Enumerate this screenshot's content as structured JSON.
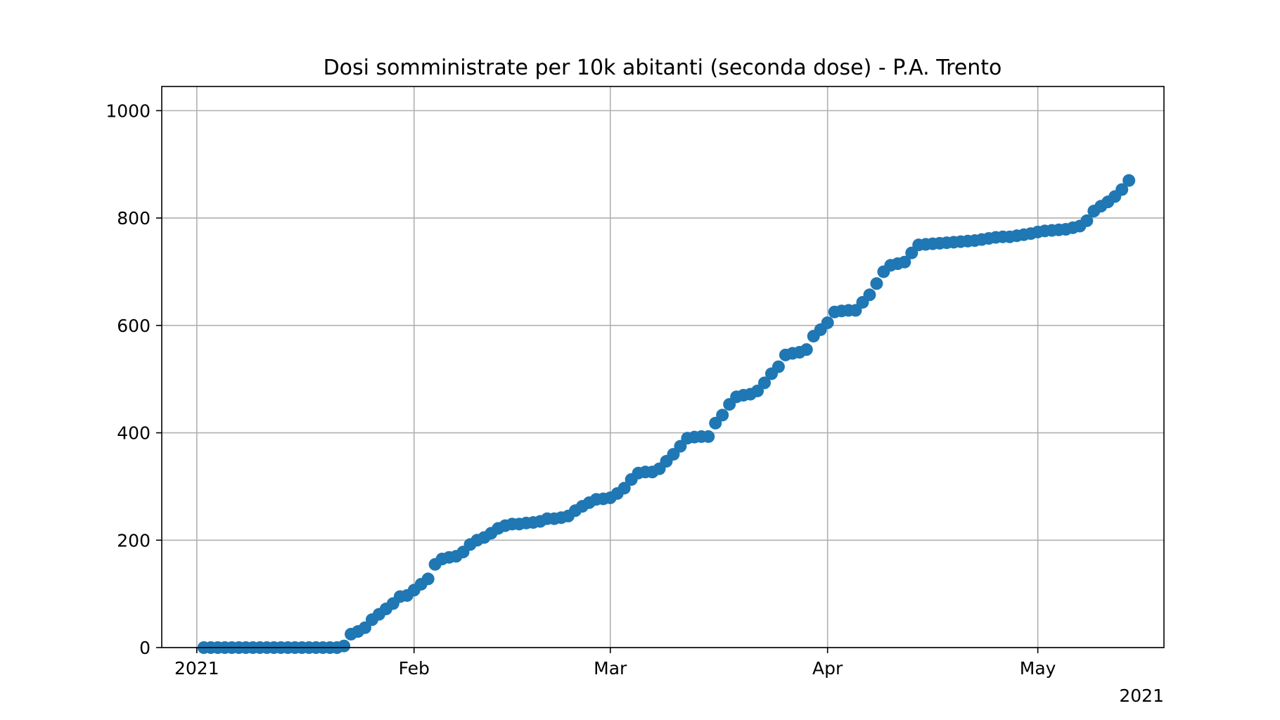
{
  "chart_data": {
    "type": "scatter",
    "title": "Dosi somministrate per 10k abitanti (seconda dose) - P.A. Trento",
    "xlabel": "",
    "ylabel": "",
    "x_offset_label": "2021",
    "grid": true,
    "legend": "none",
    "marker_color": "#1f77b4",
    "x_ticks": [
      {
        "date": "2021-01-01",
        "label": "2021"
      },
      {
        "date": "2021-02-01",
        "label": "Feb"
      },
      {
        "date": "2021-03-01",
        "label": "Mar"
      },
      {
        "date": "2021-04-01",
        "label": "Apr"
      },
      {
        "date": "2021-05-01",
        "label": "May"
      }
    ],
    "y_ticks": [
      0,
      200,
      400,
      600,
      800,
      1000
    ],
    "xlim": [
      "2020-12-27",
      "2021-05-19"
    ],
    "ylim": [
      0,
      1045
    ],
    "series": [
      {
        "x": [
          "2021-01-02",
          "2021-01-03",
          "2021-01-04",
          "2021-01-05",
          "2021-01-06",
          "2021-01-07",
          "2021-01-08",
          "2021-01-09",
          "2021-01-10",
          "2021-01-11",
          "2021-01-12",
          "2021-01-13",
          "2021-01-14",
          "2021-01-15",
          "2021-01-16",
          "2021-01-17",
          "2021-01-18",
          "2021-01-19",
          "2021-01-20",
          "2021-01-21",
          "2021-01-22",
          "2021-01-23",
          "2021-01-24",
          "2021-01-25",
          "2021-01-26",
          "2021-01-27",
          "2021-01-28",
          "2021-01-29",
          "2021-01-30",
          "2021-01-31",
          "2021-02-01",
          "2021-02-02",
          "2021-02-03",
          "2021-02-04",
          "2021-02-05",
          "2021-02-06",
          "2021-02-07",
          "2021-02-08",
          "2021-02-09",
          "2021-02-10",
          "2021-02-11",
          "2021-02-12",
          "2021-02-13",
          "2021-02-14",
          "2021-02-15",
          "2021-02-16",
          "2021-02-17",
          "2021-02-18",
          "2021-02-19",
          "2021-02-20",
          "2021-02-21",
          "2021-02-22",
          "2021-02-23",
          "2021-02-24",
          "2021-02-25",
          "2021-02-26",
          "2021-02-27",
          "2021-02-28",
          "2021-03-01",
          "2021-03-02",
          "2021-03-03",
          "2021-03-04",
          "2021-03-05",
          "2021-03-06",
          "2021-03-07",
          "2021-03-08",
          "2021-03-09",
          "2021-03-10",
          "2021-03-11",
          "2021-03-12",
          "2021-03-13",
          "2021-03-14",
          "2021-03-15",
          "2021-03-16",
          "2021-03-17",
          "2021-03-18",
          "2021-03-19",
          "2021-03-20",
          "2021-03-21",
          "2021-03-22",
          "2021-03-23",
          "2021-03-24",
          "2021-03-25",
          "2021-03-26",
          "2021-03-27",
          "2021-03-28",
          "2021-03-29",
          "2021-03-30",
          "2021-03-31",
          "2021-04-01",
          "2021-04-02",
          "2021-04-03",
          "2021-04-04",
          "2021-04-05",
          "2021-04-06",
          "2021-04-07",
          "2021-04-08",
          "2021-04-09",
          "2021-04-10",
          "2021-04-11",
          "2021-04-12",
          "2021-04-13",
          "2021-04-14",
          "2021-04-15",
          "2021-04-16",
          "2021-04-17",
          "2021-04-18",
          "2021-04-19",
          "2021-04-20",
          "2021-04-21",
          "2021-04-22",
          "2021-04-23",
          "2021-04-24",
          "2021-04-25",
          "2021-04-26",
          "2021-04-27",
          "2021-04-28",
          "2021-04-29",
          "2021-04-30",
          "2021-05-01",
          "2021-05-02",
          "2021-05-03",
          "2021-05-04",
          "2021-05-05",
          "2021-05-06",
          "2021-05-07",
          "2021-05-08",
          "2021-05-09",
          "2021-05-10",
          "2021-05-11",
          "2021-05-12",
          "2021-05-13",
          "2021-05-14"
        ],
        "values": [
          0,
          0,
          0,
          0,
          0,
          0,
          0,
          0,
          0,
          0,
          0,
          0,
          0,
          0,
          0,
          0,
          0,
          0,
          0,
          0,
          3,
          25,
          30,
          37,
          52,
          62,
          72,
          82,
          95,
          97,
          107,
          118,
          128,
          155,
          165,
          168,
          170,
          178,
          192,
          200,
          205,
          213,
          222,
          227,
          230,
          230,
          232,
          233,
          235,
          240,
          240,
          242,
          245,
          255,
          263,
          270,
          276,
          277,
          279,
          287,
          297,
          313,
          325,
          327,
          327,
          333,
          347,
          360,
          375,
          390,
          392,
          393,
          393,
          418,
          433,
          453,
          467,
          470,
          472,
          478,
          493,
          510,
          523,
          545,
          548,
          550,
          555,
          580,
          592,
          605,
          625,
          627,
          628,
          628,
          643,
          657,
          678,
          700,
          712,
          715,
          718,
          735,
          750,
          751,
          752,
          753,
          754,
          755,
          756,
          757,
          758,
          760,
          762,
          764,
          765,
          765,
          767,
          769,
          771,
          774,
          776,
          777,
          778,
          779,
          782,
          785,
          795,
          813,
          822,
          830,
          840,
          853,
          870
        ]
      }
    ]
  }
}
